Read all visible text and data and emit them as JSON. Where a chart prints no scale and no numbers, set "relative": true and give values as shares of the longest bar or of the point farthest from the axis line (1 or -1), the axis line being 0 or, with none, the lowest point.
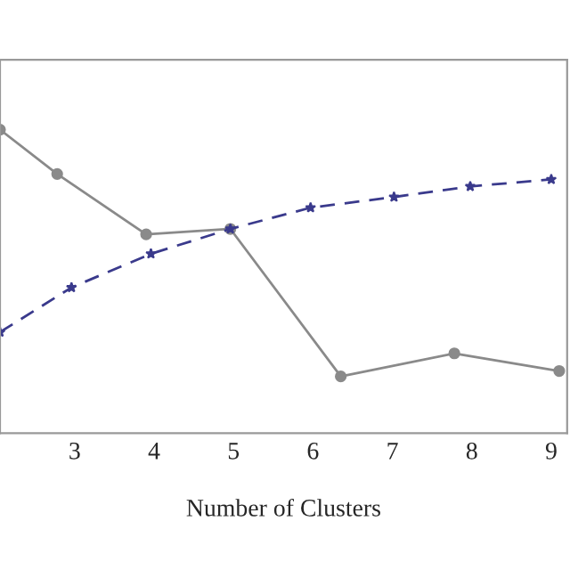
{
  "chart_data": {
    "type": "line",
    "xlabel": "Number of Clusters",
    "relative": true,
    "xlim": [
      2.06,
      9.2
    ],
    "xticks": [
      3,
      4,
      5,
      6,
      7,
      8,
      9
    ],
    "grid": false,
    "series": [
      {
        "color": "#8a8a8a",
        "marker": "circle",
        "line_style": "solid",
        "x": [
          2.06,
          2.78,
          3.9,
          4.96,
          6.35,
          7.78,
          9.1
        ],
        "values": [
          1,
          0.854,
          0.655,
          0.673,
          0.187,
          0.263,
          0.205
        ]
      },
      {
        "color": "#3a3a8c",
        "marker": "star",
        "line_style": "dashed",
        "x": [
          2.06,
          2.96,
          3.96,
          4.96,
          5.97,
          7.02,
          7.98,
          9.0
        ],
        "values": [
          0.333,
          0.48,
          0.591,
          0.673,
          0.743,
          0.778,
          0.813,
          0.836
        ]
      }
    ]
  }
}
